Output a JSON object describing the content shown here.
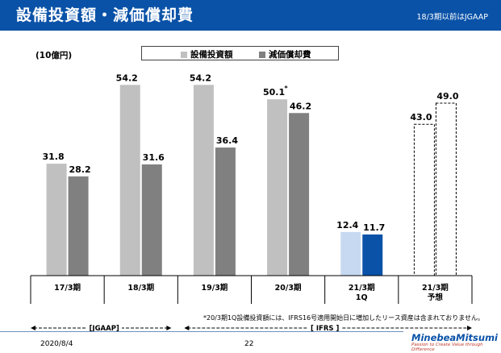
{
  "header": {
    "title": "設備投資額・減価償却費",
    "note": "18/3期以前はJGAAP"
  },
  "unit_label": "(10億円)",
  "legend": [
    {
      "label": "設備投資額",
      "color": "#c0c0c0"
    },
    {
      "label": "減価償却費",
      "color": "#808080"
    }
  ],
  "chart_data": {
    "type": "bar",
    "categories": [
      "17/3期",
      "18/3期",
      "19/3期",
      "20/3期",
      "21/3期\n1Q",
      "21/3期\n予想"
    ],
    "series": [
      {
        "name": "設備投資額",
        "values": [
          31.8,
          54.2,
          54.2,
          50.1,
          12.4,
          43.0
        ]
      },
      {
        "name": "減価償却費",
        "values": [
          28.2,
          31.6,
          36.4,
          46.2,
          11.7,
          49.0
        ]
      }
    ],
    "value_labels": {
      "設備投資額": [
        "31.8",
        "54.2",
        "54.2",
        "50.1",
        "12.4",
        "43.0"
      ],
      "減価償却費": [
        "28.2",
        "31.6",
        "36.4",
        "46.2",
        "11.7",
        "49.0"
      ]
    },
    "annotation_marker": "*",
    "colors": {
      "capex_default": "#c0c0c0",
      "dep_default": "#808080",
      "capex_1q": "#c6d9f1",
      "dep_1q": "#0a52a8"
    },
    "forecast_style": "dashed",
    "ylim": [
      0,
      60
    ]
  },
  "periods": {
    "jgaap": "[JGAAP]",
    "ifrs": "[ IFRS ]"
  },
  "footnote": "*20/3期1Q設備投資額には、IFRS16号適用開始日に増加したリース資産は含まれておりません。",
  "footer": {
    "date": "2020/8/4",
    "page": "22",
    "logo_name": "MinebeaMitsumi",
    "logo_tagline": "Passion to Create Value through Difference"
  }
}
